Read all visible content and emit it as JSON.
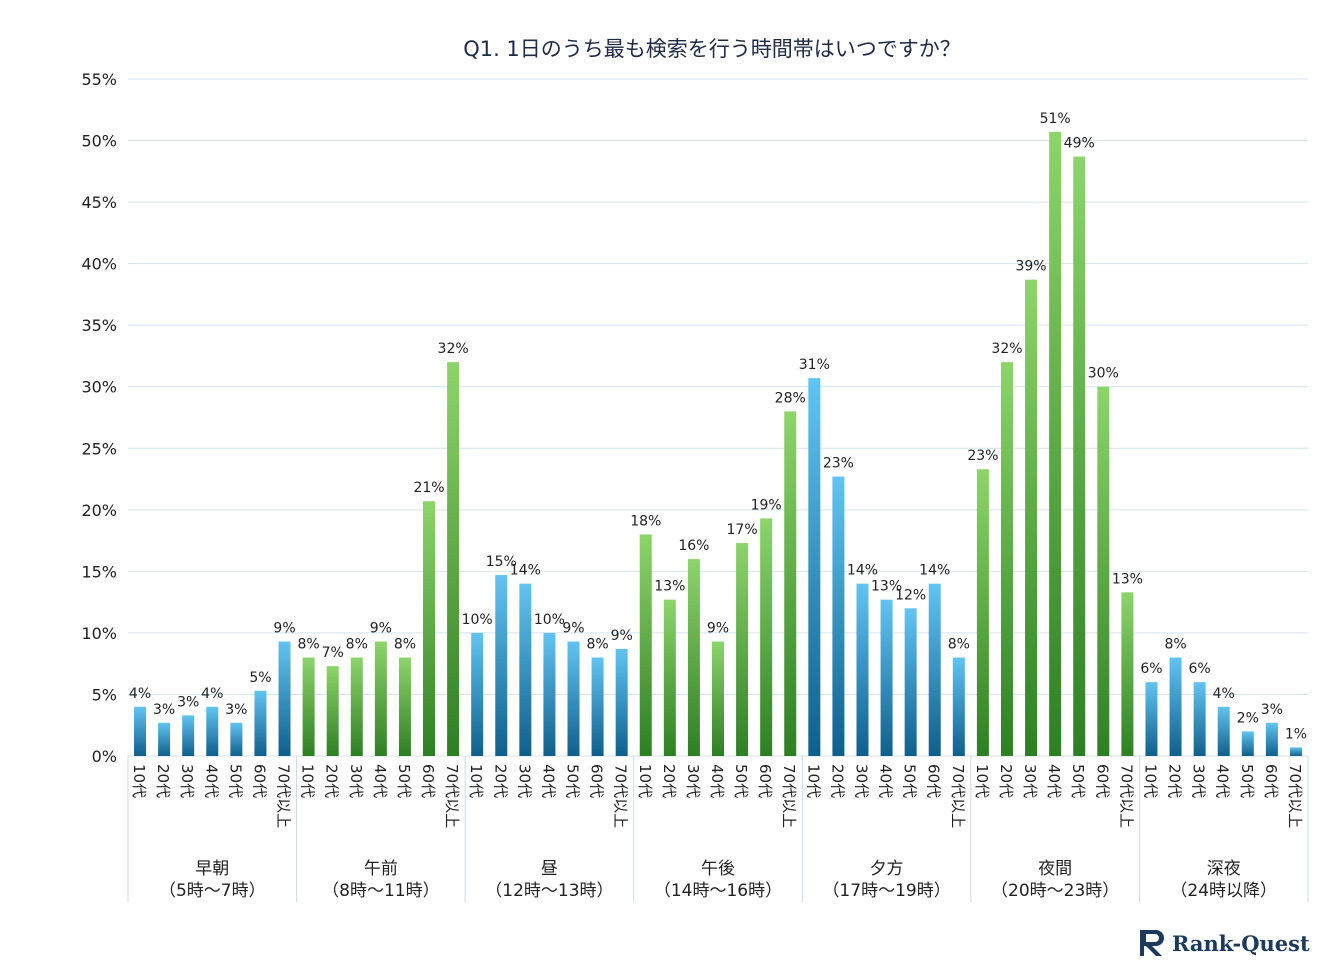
{
  "chart_data": {
    "type": "bar",
    "title": "Q1. 1日のうち最も検索を行う時間帯はいつですか？",
    "ylim": [
      0,
      55
    ],
    "yticks": [
      "0%",
      "5%",
      "10%",
      "15%",
      "20%",
      "25%",
      "30%",
      "35%",
      "40%",
      "45%",
      "50%",
      "55%"
    ],
    "grid": true,
    "ages": [
      "10代",
      "20代",
      "30代",
      "40代",
      "50代",
      "60代",
      "70代以上"
    ],
    "series": [
      {
        "name": "早朝",
        "sub": "（5時～7時）",
        "color": "blue",
        "values": [
          4,
          2.7,
          3.3,
          4,
          2.7,
          5.3,
          9.3
        ],
        "labels": [
          "4%",
          "3%",
          "3%",
          "4%",
          "3%",
          "5%",
          "9%"
        ]
      },
      {
        "name": "午前",
        "sub": "（8時～11時）",
        "color": "green",
        "values": [
          8,
          7.3,
          8,
          9.3,
          8,
          20.7,
          32
        ],
        "labels": [
          "8%",
          "7%",
          "8%",
          "9%",
          "8%",
          "21%",
          "32%"
        ]
      },
      {
        "name": "昼",
        "sub": "（12時～13時）",
        "color": "blue",
        "values": [
          10,
          14.7,
          14,
          10,
          9.3,
          8,
          8.7
        ],
        "labels": [
          "10%",
          "15%",
          "14%",
          "10%",
          "9%",
          "8%",
          "9%"
        ]
      },
      {
        "name": "午後",
        "sub": "（14時～16時）",
        "color": "green",
        "values": [
          18,
          12.7,
          16,
          9.3,
          17.3,
          19.3,
          28
        ],
        "labels": [
          "18%",
          "13%",
          "16%",
          "9%",
          "17%",
          "19%",
          "28%"
        ]
      },
      {
        "name": "夕方",
        "sub": "（17時～19時）",
        "color": "blue",
        "values": [
          30.7,
          22.7,
          14,
          12.7,
          12,
          14,
          8
        ],
        "labels": [
          "31%",
          "23%",
          "14%",
          "13%",
          "12%",
          "14%",
          "8%"
        ]
      },
      {
        "name": "夜間",
        "sub": "（20時～23時）",
        "color": "green",
        "values": [
          23.3,
          32,
          38.7,
          50.7,
          48.7,
          30,
          13.3
        ],
        "labels": [
          "23%",
          "32%",
          "39%",
          "51%",
          "49%",
          "30%",
          "13%"
        ]
      },
      {
        "name": "深夜",
        "sub": "（24時以降）",
        "color": "blue",
        "values": [
          6,
          8,
          6,
          4,
          2,
          2.7,
          0.7
        ],
        "labels": [
          "6%",
          "8%",
          "6%",
          "4%",
          "2%",
          "3%",
          "1%"
        ]
      }
    ]
  },
  "brand": {
    "name": "Rank-Quest"
  },
  "colors": {
    "blue_top": "#62c4f2",
    "blue_bottom": "#0f5f8c",
    "green_top": "#8dd46b",
    "green_bottom": "#2e7f24",
    "grid": "#d4e3ee",
    "divider": "#c8dce8"
  }
}
